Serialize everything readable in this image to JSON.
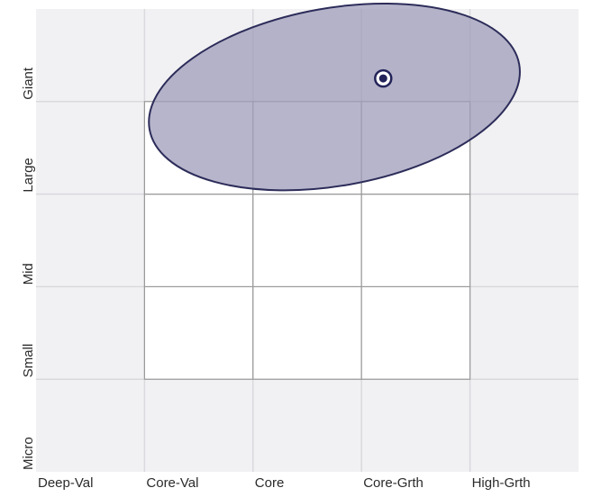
{
  "chart_data": {
    "type": "scatter",
    "x_categories": [
      "Deep-Val",
      "Core-Val",
      "Core",
      "Core-Grth",
      "High-Grth"
    ],
    "y_categories": [
      "Micro",
      "Small",
      "Mid",
      "Large",
      "Giant"
    ],
    "grid": true,
    "highlighted_box": {
      "x_range": [
        "Core-Val",
        "Core-Grth"
      ],
      "y_range": [
        "Small",
        "Large"
      ]
    },
    "centroid": {
      "x": 3.2,
      "y": 4.25
    },
    "zone_ellipse": {
      "center_x": 2.75,
      "center_y": 4.05,
      "radius_x": 1.73,
      "radius_y": 0.96,
      "rotation_deg": -10
    },
    "colors": {
      "background": "#f1f1f3",
      "grid": "#d9d9de",
      "box_fill": "#ffffff",
      "box_border": "#9a9a9a",
      "ellipse_fill": "#9f9cba",
      "ellipse_fill_opacity": 0.75,
      "ellipse_stroke": "#2c2c5a",
      "centroid": "#23235a",
      "text": "#2b2b2b"
    }
  }
}
